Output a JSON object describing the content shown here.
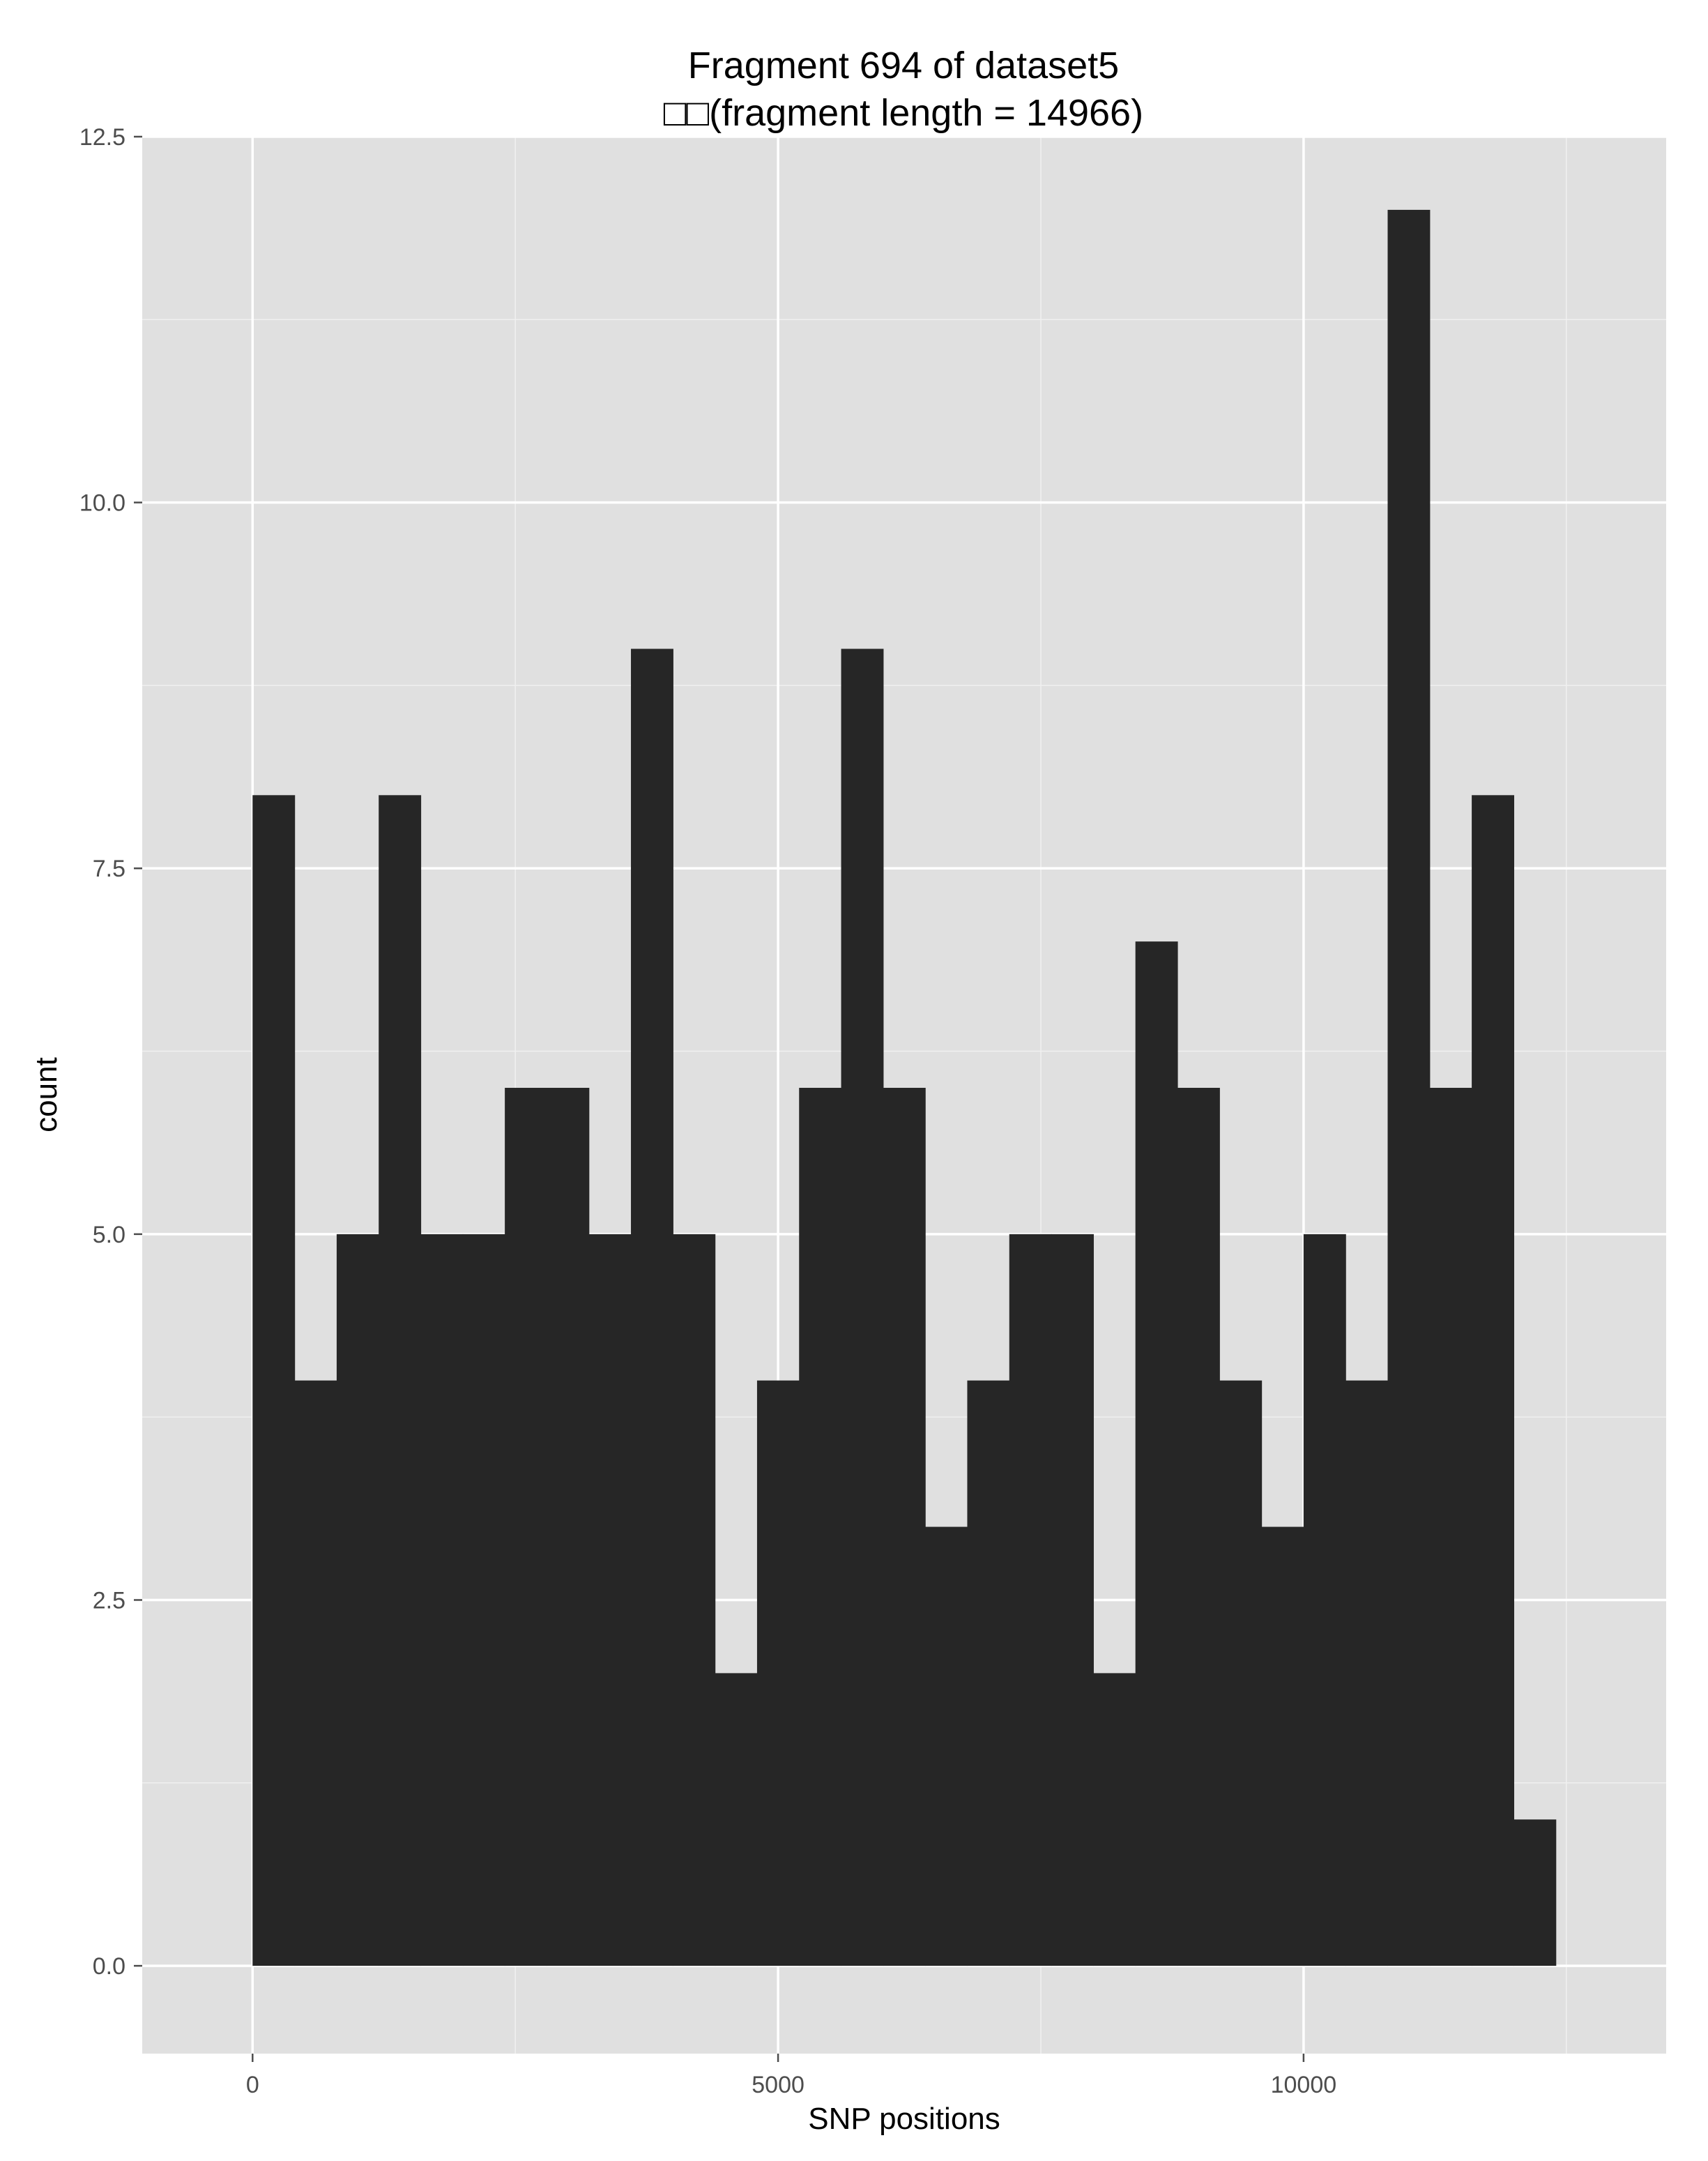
{
  "chart_data": {
    "type": "bar",
    "title": "Fragment 694 of dataset5",
    "subtitle": "□□(fragment length = 14966)",
    "xlabel": "SNP positions",
    "ylabel": "count",
    "xlim": [
      -1050,
      13450
    ],
    "ylim": [
      -0.6,
      12.5
    ],
    "x_ticks": [
      {
        "value": 0,
        "label": "0"
      },
      {
        "value": 5000,
        "label": "5000"
      },
      {
        "value": 10000,
        "label": "10000"
      }
    ],
    "y_ticks": [
      {
        "value": 0,
        "label": "0.0"
      },
      {
        "value": 2.5,
        "label": "2.5"
      },
      {
        "value": 5,
        "label": "5.0"
      },
      {
        "value": 7.5,
        "label": "7.5"
      },
      {
        "value": 10,
        "label": "10.0"
      },
      {
        "value": 12.5,
        "label": "12.5"
      }
    ],
    "x_minor_gridlines": [
      2500,
      7500,
      12500
    ],
    "y_minor_gridlines": [
      1.25,
      3.75,
      6.25,
      8.75,
      11.25
    ],
    "grid": true,
    "bin_width": 400,
    "bin_start": 0,
    "values": [
      8,
      4,
      5,
      8,
      5,
      5,
      6,
      6,
      5,
      9,
      5,
      2,
      4,
      6,
      9,
      6,
      3,
      4,
      5,
      5,
      2,
      7,
      6,
      4,
      3,
      5,
      4,
      12,
      6,
      8,
      1
    ],
    "colors": {
      "bar": "#262626",
      "panel": "#e0e0e0",
      "major_grid": "#ffffff",
      "minor_grid": "#f0f0f0",
      "tick": "#4d4d4d"
    }
  }
}
